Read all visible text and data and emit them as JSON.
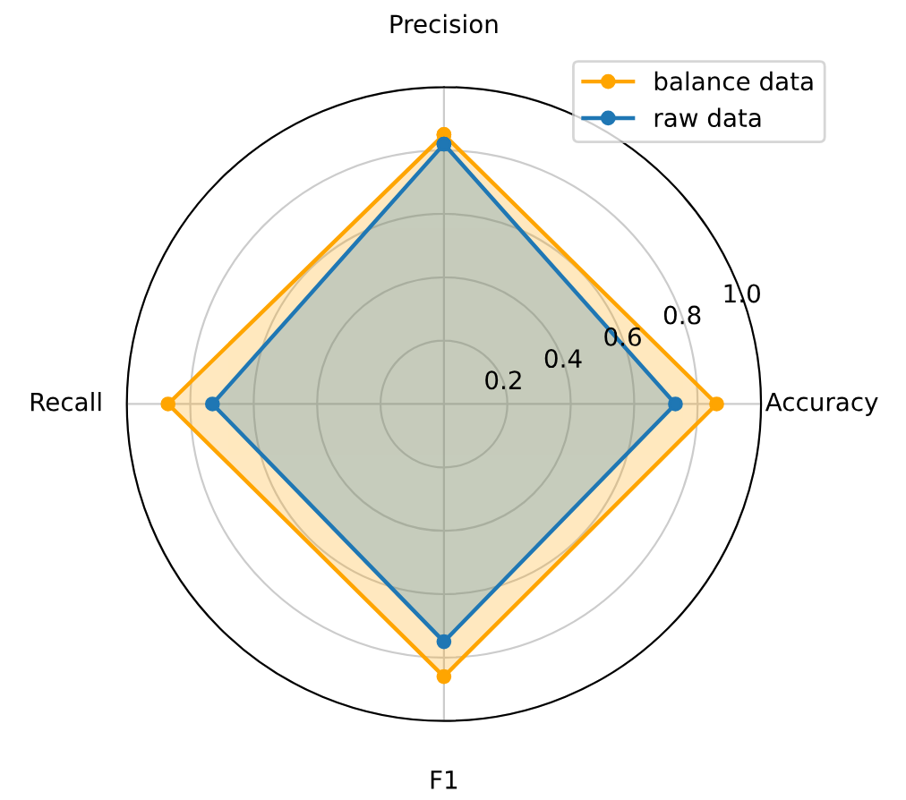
{
  "chart_data": {
    "type": "radar",
    "categories": [
      "Precision",
      "Accuracy",
      "F1",
      "Recall"
    ],
    "series": [
      {
        "name": "balance data",
        "color": "#ffa500",
        "values": [
          0.85,
          0.86,
          0.86,
          0.87
        ]
      },
      {
        "name": "raw data",
        "color": "#1f77b4",
        "values": [
          0.82,
          0.73,
          0.75,
          0.73
        ]
      }
    ],
    "ylim": [
      0,
      1.0
    ],
    "yticks": [
      0.2,
      0.4,
      0.6,
      0.8,
      {
        "value": 1,
        "label": "1.0"
      }
    ],
    "grid": true,
    "legend": "top right",
    "marker": "circle"
  }
}
